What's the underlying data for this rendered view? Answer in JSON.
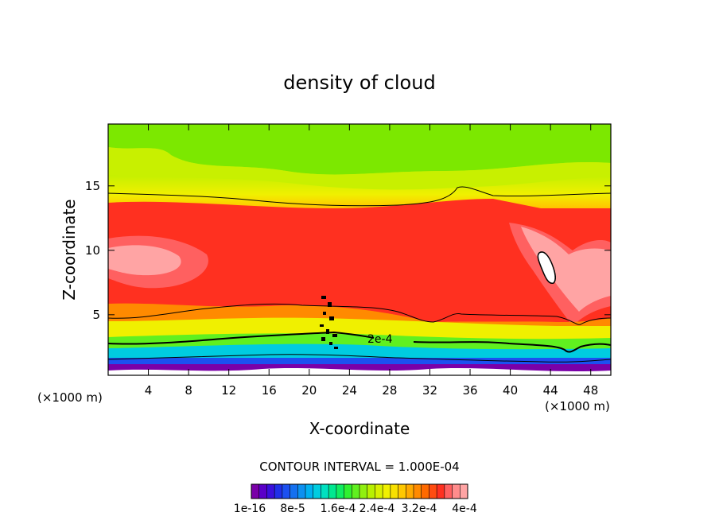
{
  "chart_data": {
    "type": "heatmap",
    "title": "density of cloud",
    "xlabel": "X-coordinate",
    "ylabel": "Z-coordinate",
    "x_unit_label": "(×1000 m)",
    "xlim": [
      0,
      50
    ],
    "ylim": [
      0.3,
      19.8
    ],
    "x_ticks": [
      4,
      8,
      12,
      16,
      20,
      24,
      28,
      32,
      36,
      40,
      44,
      48
    ],
    "y_ticks": [
      5,
      10,
      15
    ],
    "contour_interval_text": "CONTOUR INTERVAL = 1.000E-04",
    "contour_label": "2e-4",
    "colorbar": {
      "colors": [
        "#7a00a8",
        "#5a00c8",
        "#3a10dc",
        "#2030e8",
        "#1c50f0",
        "#1470f0",
        "#0c90f0",
        "#00b0f0",
        "#00cce0",
        "#00e0c0",
        "#00e890",
        "#10ec60",
        "#30f030",
        "#60f020",
        "#90f010",
        "#b8f000",
        "#d8f000",
        "#f0f000",
        "#f8e000",
        "#ffc800",
        "#ffaa00",
        "#ff8a00",
        "#ff6a00",
        "#ff4c10",
        "#ff3020",
        "#ff6060",
        "#ff8c8c",
        "#ffa4a4"
      ],
      "labels": [
        "1e-16",
        "8e-5",
        "1.6e-4",
        "2.4e-4",
        "3.2e-4",
        "4e-4"
      ],
      "range": [
        0,
        0.0004
      ]
    },
    "field_description_levels": {
      "upper_band_z": [
        17,
        19.8
      ],
      "contour_lines_z_approx": [
        14.3,
        5.0,
        2.7,
        1.4
      ]
    }
  },
  "colors": {
    "axis": "#000000",
    "background": "#ffffff"
  }
}
